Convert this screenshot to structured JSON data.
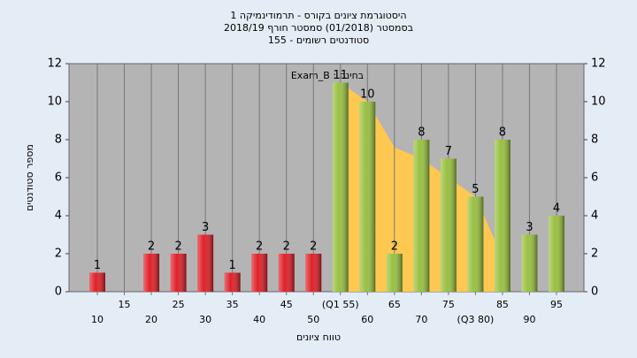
{
  "chart_data": {
    "type": "bar",
    "title": [
      "היסטוגרמת ציונים בקורס - תרמודינמיקה 1",
      "בסמסטר (01/2018) סמסטר חורף 2018/19",
      "סטודנטים רשומים - 155"
    ],
    "annotation": "בחינה : Exam_B",
    "x_label": "טווח ציונים",
    "y_label": "מספר סטודנטים",
    "categories": [
      "10",
      "15",
      "20",
      "25",
      "30",
      "35",
      "40",
      "45",
      "50",
      "(Q1 55)",
      "60",
      "65",
      "70",
      "75",
      "(Q3 80)",
      "85",
      "90",
      "95"
    ],
    "values": [
      1,
      0,
      2,
      2,
      3,
      1,
      2,
      2,
      2,
      11,
      10,
      2,
      8,
      7,
      5,
      8,
      3,
      4
    ],
    "value_labels": [
      "1",
      null,
      "2",
      "2",
      "3",
      "1",
      "2",
      "2",
      "2",
      "11",
      "10",
      "2",
      "8",
      "7",
      "5",
      "8",
      "3",
      "4"
    ],
    "bar_colors": [
      "#e02028",
      "#e02028",
      "#e02028",
      "#e02028",
      "#e02028",
      "#e02028",
      "#e02028",
      "#e02028",
      "#e02028",
      "#98c040",
      "#98c040",
      "#98c040",
      "#98c040",
      "#98c040",
      "#98c040",
      "#98c040",
      "#98c040",
      "#98c040"
    ],
    "area": {
      "color": "#ffc850",
      "x": [
        55,
        60,
        65,
        70,
        75,
        80,
        85
      ],
      "values": [
        11,
        10,
        7.6,
        7,
        6,
        5,
        1.8
      ]
    },
    "ylim": [
      0,
      12
    ],
    "yticks": [
      0,
      2,
      4,
      6,
      8,
      10,
      12
    ],
    "y2lim": [
      0,
      12
    ],
    "y2ticks": [
      0,
      2,
      4,
      6,
      8,
      10,
      12
    ]
  }
}
